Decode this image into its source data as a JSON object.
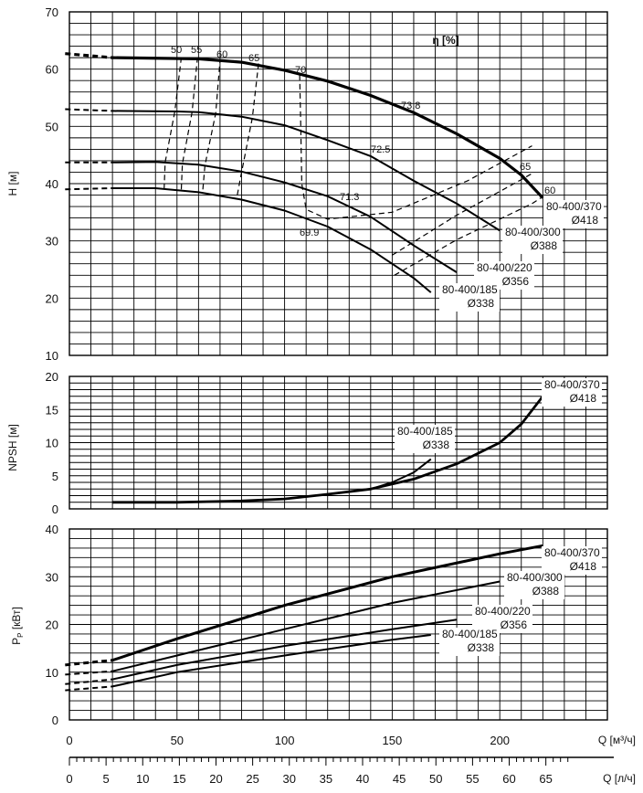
{
  "chart_data": [
    {
      "type": "line",
      "ylabel": "H [м]",
      "xlim": [
        0,
        250
      ],
      "ylim": [
        10,
        70
      ],
      "y_ticks": [
        "10",
        "20",
        "30",
        "40",
        "50",
        "60",
        "70"
      ],
      "grid": true,
      "annotations": {
        "eta_label": "η [%]"
      },
      "series": [
        {
          "name": "80-400/370",
          "name2": "Ø418",
          "width": 3.2,
          "dashed_x": [
            -5,
            20
          ],
          "dashed_y": [
            62.7,
            62.0
          ],
          "x": [
            20,
            60,
            80,
            100,
            120,
            140,
            160,
            180,
            200,
            210,
            220
          ],
          "y": [
            62.0,
            61.8,
            61.2,
            59.8,
            57.9,
            55.4,
            52.4,
            48.7,
            44.4,
            41.5,
            37.5
          ]
        },
        {
          "name": "80-400/300",
          "name2": "Ø388",
          "width": 2.0,
          "dashed_x": [
            -5,
            20
          ],
          "dashed_y": [
            53.0,
            52.7
          ],
          "x": [
            20,
            50,
            60,
            80,
            100,
            120,
            140,
            160,
            180,
            200
          ],
          "y": [
            52.7,
            52.6,
            52.5,
            51.7,
            50.2,
            47.6,
            44.8,
            40.5,
            36.5,
            31.8
          ]
        },
        {
          "name": "80-400/220",
          "name2": "Ø356",
          "width": 2.0,
          "dashed_x": [
            -5,
            20
          ],
          "dashed_y": [
            43.7,
            43.7
          ],
          "x": [
            20,
            40,
            60,
            80,
            100,
            120,
            140,
            160,
            180
          ],
          "y": [
            43.7,
            43.8,
            43.3,
            42.1,
            40.2,
            37.8,
            34.2,
            29.2,
            24.5
          ]
        },
        {
          "name": "80-400/185",
          "name2": "Ø338",
          "width": 2.0,
          "dashed_x": [
            -5,
            20
          ],
          "dashed_y": [
            39.0,
            39.2
          ],
          "x": [
            20,
            40,
            60,
            80,
            100,
            120,
            140,
            160,
            168
          ],
          "y": [
            39.2,
            39.2,
            38.5,
            37.2,
            35.3,
            32.5,
            28.5,
            23.5,
            21.0
          ]
        }
      ],
      "efficiency_curves": [
        {
          "label": "50",
          "x": [
            44,
            44.5,
            49,
            52
          ],
          "y": [
            39,
            43.7,
            52.6,
            62
          ]
        },
        {
          "label": "55",
          "x": [
            52,
            52.5,
            57,
            59.5
          ],
          "y": [
            39,
            43.5,
            52.5,
            62
          ]
        },
        {
          "label": "60",
          "x": [
            62,
            63,
            68,
            70
          ],
          "y": [
            39,
            43.2,
            52.3,
            61.5
          ]
        },
        {
          "label": "65",
          "x": [
            78,
            80,
            85,
            88
          ],
          "y": [
            38,
            42,
            51.5,
            61.3
          ]
        },
        {
          "label": "70",
          "x": [
            107,
            107.5,
            108,
            110,
            120,
            150,
            185,
            215
          ],
          "y": [
            59,
            50,
            40,
            35.5,
            33.8,
            35,
            40.5,
            46.6
          ]
        },
        {
          "label": "65",
          "x": [
            150,
            180,
            210,
            216
          ],
          "y": [
            27.5,
            34.5,
            40.7,
            42.0
          ]
        },
        {
          "label": "60",
          "x": [
            151,
            180,
            215,
            219
          ],
          "y": [
            24,
            30.2,
            36.5,
            37.5
          ]
        }
      ],
      "point_labels": [
        "73.8",
        "72.5",
        "71.3",
        "69.9"
      ]
    },
    {
      "type": "line",
      "ylabel": "NPSH [м]",
      "xlim": [
        0,
        250
      ],
      "ylim": [
        0,
        20
      ],
      "y_ticks": [
        "0",
        "5",
        "10",
        "15",
        "20"
      ],
      "grid": true,
      "series": [
        {
          "name": "80-400/370",
          "name2": "Ø418",
          "width": 2.8,
          "x": [
            20,
            50,
            80,
            100,
            120,
            140,
            160,
            180,
            200,
            210,
            220
          ],
          "y": [
            1.0,
            1.0,
            1.2,
            1.5,
            2.2,
            3.0,
            4.5,
            6.8,
            10.0,
            12.8,
            17.0
          ]
        },
        {
          "name": "80-400/185",
          "name2": "Ø338",
          "width": 2.0,
          "x": [
            140,
            150,
            160,
            168
          ],
          "y": [
            3.0,
            4.0,
            5.5,
            7.5
          ]
        }
      ]
    },
    {
      "type": "line",
      "ylabel": "P",
      "ylabel_sub": "P",
      "ylabel_unit": "[кВт]",
      "xlabel": "Q [м³/ч]",
      "xlim": [
        0,
        250
      ],
      "ylim": [
        0,
        40
      ],
      "y_ticks": [
        "0",
        "10",
        "20",
        "30",
        "40"
      ],
      "x_ticks": [
        "0",
        "50",
        "100",
        "150",
        "200"
      ],
      "grid": true,
      "series": [
        {
          "name": "80-400/370",
          "name2": "Ø418",
          "width": 3.0,
          "dashed_x": [
            -5,
            20
          ],
          "dashed_y": [
            11.5,
            12.5
          ],
          "x": [
            20,
            50,
            100,
            150,
            200,
            220
          ],
          "y": [
            12.5,
            17.0,
            24.0,
            30.0,
            34.8,
            36.5
          ]
        },
        {
          "name": "80-400/300",
          "name2": "Ø388",
          "width": 2.0,
          "dashed_x": [
            -5,
            20
          ],
          "dashed_y": [
            9.5,
            10.2
          ],
          "x": [
            20,
            50,
            100,
            150,
            200
          ],
          "y": [
            10.2,
            13.5,
            19.0,
            24.5,
            29.0
          ]
        },
        {
          "name": "80-400/220",
          "name2": "Ø356",
          "width": 2.0,
          "dashed_x": [
            -5,
            20
          ],
          "dashed_y": [
            7.5,
            8.5
          ],
          "x": [
            20,
            50,
            100,
            150,
            180
          ],
          "y": [
            8.5,
            11.5,
            15.5,
            19.0,
            21.0
          ]
        },
        {
          "name": "80-400/185",
          "name2": "Ø338",
          "width": 2.0,
          "dashed_x": [
            -5,
            20
          ],
          "dashed_y": [
            6.2,
            7.0
          ],
          "x": [
            20,
            50,
            100,
            150,
            168
          ],
          "y": [
            7.0,
            10.0,
            13.5,
            16.8,
            17.8
          ]
        }
      ]
    }
  ],
  "secondary_axis": {
    "xlabel": "Q [л/ч]",
    "xlim": [
      0,
      70
    ],
    "x_ticks": [
      "0",
      "5",
      "10",
      "15",
      "20",
      "25",
      "30",
      "35",
      "40",
      "45",
      "50",
      "55",
      "60",
      "65"
    ]
  }
}
